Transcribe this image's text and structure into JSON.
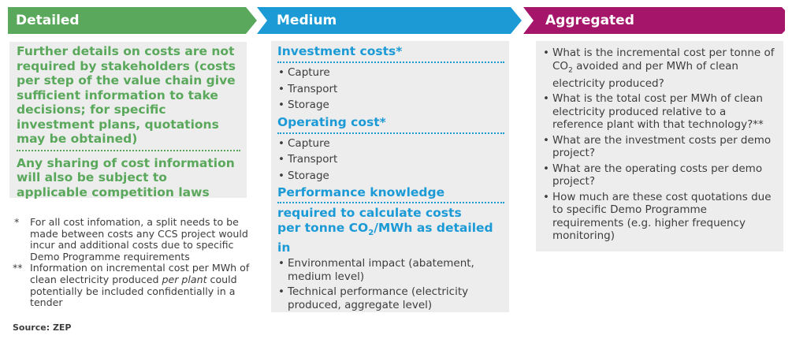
{
  "colors": {
    "green": "#5aa85b",
    "blue": "#1b9ad6",
    "purple": "#a5166b",
    "panel": "#ededed"
  },
  "headers": {
    "detailed": "Detailed",
    "medium": "Medium",
    "aggregated": "Aggregated"
  },
  "detailed": {
    "para1": "Further details on costs are not required by stakeholders (costs per step of the value chain give sufficient information to take decisions; for specific investment plans, quotations may be obtained)",
    "para2": "Any sharing of cost information will also be subject to applicable competition laws"
  },
  "footnotes": [
    {
      "mark": "*",
      "text": "For all cost infomation, a split needs to be made between costs any CCS project would incur and additional costs due to specific Demo Programme requirements"
    },
    {
      "mark": "**",
      "text_before": "Information on incremental cost per MWh of clean electricity produced ",
      "text_italic": "per plant",
      "text_after": " could potentially be included confidentially in a tender"
    }
  ],
  "source": "Source: ZEP",
  "medium": {
    "investment_title": "Investment costs*",
    "investment_items": [
      "Capture",
      "Transport",
      "Storage"
    ],
    "operating_title": "Operating cost*",
    "operating_items": [
      "Capture",
      "Transport",
      "Storage"
    ],
    "performance_title": "Performance knowledge",
    "performance_sub_line1": "required to calculate costs",
    "performance_sub_line2_before": "per tonne CO",
    "performance_sub_line2_sub": "2",
    "performance_sub_line2_after": "/MWh as detailed in",
    "performance_items": [
      "Environmental impact (abatement, medium level)",
      "Technical performance (electricity produced, aggregate level)"
    ]
  },
  "aggregated": {
    "q1_before": "What is the incremental cost per tonne of CO",
    "q1_sub": "2",
    "q1_after": " avoided and per MWh of clean electricity produced?",
    "questions": [
      "What is the total cost per MWh of clean electricity produced relative to a reference plant with that technology?**",
      "What are the investment costs per demo project?",
      "What are the operating costs per demo project?",
      "How much are these cost quotations due to specific Demo Programme requirements (e.g. higher frequency monitoring)"
    ]
  }
}
